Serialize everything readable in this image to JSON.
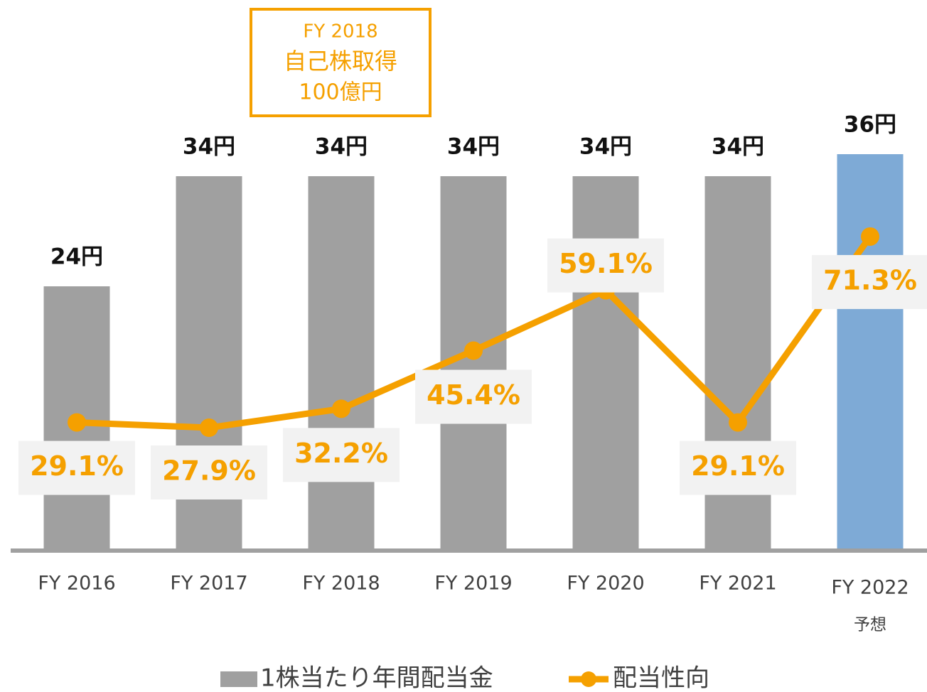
{
  "chart_data": {
    "type": "bar",
    "categories": [
      "FY 2016",
      "FY 2017",
      "FY 2018",
      "FY 2019",
      "FY 2020",
      "FY 2021",
      "FY 2022"
    ],
    "series": [
      {
        "name": "1株当たり年間配当金",
        "type": "bar",
        "color": "#a0a0a0",
        "colors": [
          "#a0a0a0",
          "#a0a0a0",
          "#a0a0a0",
          "#a0a0a0",
          "#a0a0a0",
          "#a0a0a0",
          "#7eaad6"
        ],
        "values": [
          24,
          34,
          34,
          34,
          34,
          34,
          36
        ],
        "value_labels": [
          "24円",
          "34円",
          "34円",
          "34円",
          "34円",
          "34円",
          "36円"
        ]
      },
      {
        "name": "配当性向",
        "type": "line",
        "axis": "y2",
        "color": "#f5a000",
        "values": [
          29.1,
          27.9,
          32.2,
          45.4,
          59.1,
          29.1,
          71.3
        ],
        "value_labels": [
          "29.1%",
          "27.9%",
          "32.2%",
          "45.4%",
          "59.1%",
          "29.1%",
          "71.3%"
        ]
      }
    ],
    "ylim": [
      0,
      50
    ],
    "y2lim": [
      0,
      125
    ],
    "annotations": {
      "forecast_note": "予想",
      "buyback": [
        "FY 2018",
        "自己株取得",
        "100億円"
      ]
    }
  }
}
